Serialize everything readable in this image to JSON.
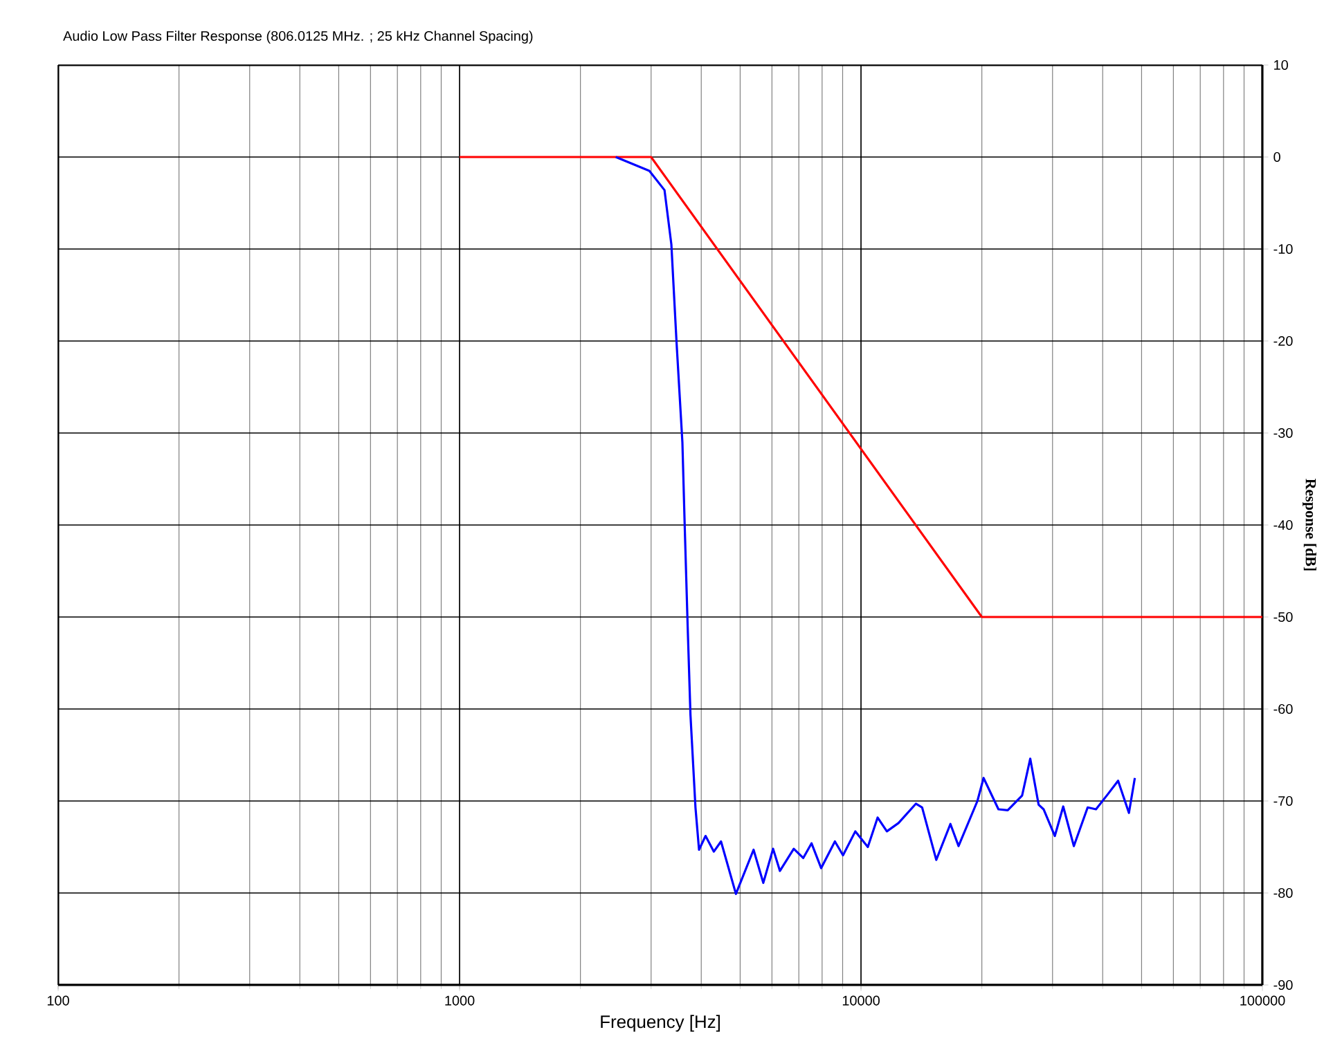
{
  "chart_data": {
    "type": "line",
    "title": "Audio Low Pass Filter Response (806.0125 MHz. ; 25 kHz Channel Spacing)",
    "xlabel": "Frequency [Hz]",
    "ylabel": "Response [dB]",
    "log": "x",
    "xlim": [
      100,
      100000
    ],
    "xticks": [
      100,
      1000,
      10000,
      100000
    ],
    "ylim": [
      -90,
      10
    ],
    "yticks": [
      -90,
      -80,
      -70,
      -60,
      -50,
      -40,
      -30,
      -20,
      -10,
      0,
      10
    ],
    "grid": true,
    "marker": "none",
    "line_style": "solid",
    "series": [
      {
        "color": "#ff0000",
        "x": [
          1000,
          3000,
          20000,
          100000
        ],
        "values": [
          0,
          0,
          -50,
          -50
        ]
      },
      {
        "color": "#0000ff",
        "x": [
          2450,
          2970,
          3240,
          3370,
          3470,
          3590,
          3640,
          3700,
          3760,
          3870,
          3950,
          4100,
          4300,
          4480,
          4880,
          5400,
          5710,
          6040,
          6280,
          6800,
          7180,
          7530,
          7960,
          8610,
          9020,
          9680,
          10400,
          11000,
          11600,
          12400,
          13700,
          14200,
          15400,
          16700,
          17500,
          19500,
          20200,
          22000,
          23200,
          25200,
          26400,
          27700,
          28500,
          30400,
          31900,
          33900,
          36700,
          38500,
          41300,
          43700,
          46500,
          48100
        ],
        "values": [
          0,
          -1.5,
          -3.6,
          -9.5,
          -20,
          -31,
          -40.4,
          -51,
          -60.6,
          -70.7,
          -75.3,
          -73.8,
          -75.5,
          -74.4,
          -80.1,
          -75.3,
          -78.9,
          -75.2,
          -77.6,
          -75.2,
          -76.2,
          -74.6,
          -77.3,
          -74.4,
          -75.9,
          -73.3,
          -75,
          -71.8,
          -73.3,
          -72.4,
          -70.3,
          -70.7,
          -76.4,
          -72.5,
          -74.9,
          -70,
          -67.5,
          -70.9,
          -71,
          -69.4,
          -65.4,
          -70.4,
          -70.9,
          -73.8,
          -70.6,
          -74.9,
          -70.7,
          -70.9,
          -69.2,
          -67.8,
          -71.3,
          -67.5
        ]
      }
    ]
  }
}
